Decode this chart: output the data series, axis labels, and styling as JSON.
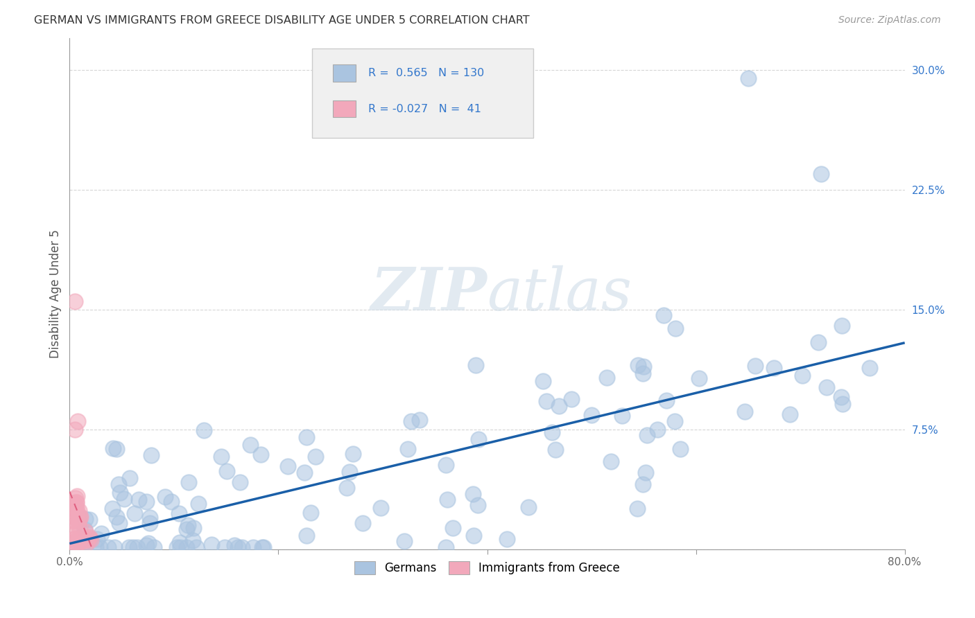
{
  "title": "GERMAN VS IMMIGRANTS FROM GREECE DISABILITY AGE UNDER 5 CORRELATION CHART",
  "source": "Source: ZipAtlas.com",
  "ylabel": "Disability Age Under 5",
  "xlim": [
    0.0,
    0.8
  ],
  "ylim": [
    0.0,
    0.32
  ],
  "yticks": [
    0.0,
    0.075,
    0.15,
    0.225,
    0.3
  ],
  "ytick_labels": [
    "",
    "7.5%",
    "15.0%",
    "22.5%",
    "30.0%"
  ],
  "R_german": 0.565,
  "N_german": 130,
  "R_greece": -0.027,
  "N_greece": 41,
  "color_german": "#aac4e0",
  "color_greek": "#f2a8bb",
  "line_color_german": "#1a5fa8",
  "line_color_greek": "#e06080",
  "background_color": "#ffffff",
  "grid_color": "#cccccc",
  "legend_box_color": "#f0f0f0",
  "legend_box_edge": "#cccccc",
  "title_color": "#333333",
  "source_color": "#999999",
  "watermark_color": "#d0dde8",
  "axis_color": "#999999",
  "tick_color": "#666666",
  "ylabel_color": "#555555",
  "yright_color": "#3377cc"
}
